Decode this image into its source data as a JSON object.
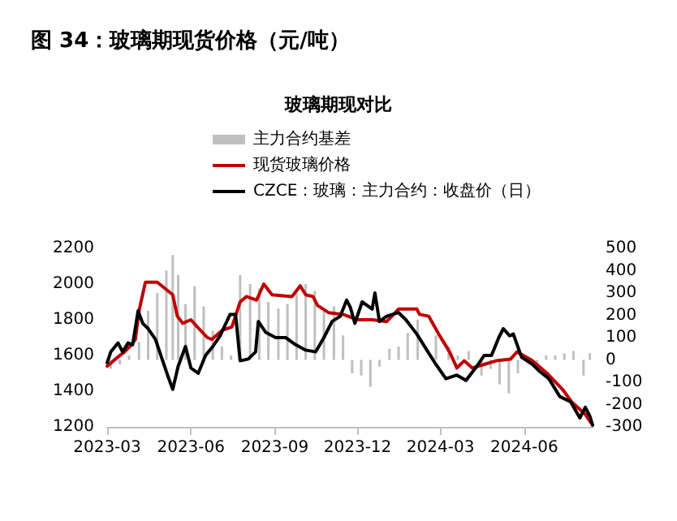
{
  "chart_data": {
    "type": "line",
    "title": "图 34：玻璃期现货价格（元/吨）",
    "subtitle": "玻璃期现对比",
    "legend": "top left",
    "grid": false,
    "marker": "none",
    "line_style": "solid",
    "xlim": [
      "2023-03-01",
      "2024-08-15"
    ],
    "xticks": [
      "2023-03",
      "2023-06",
      "2023-09",
      "2023-12",
      "2024-03",
      "2024-06"
    ],
    "ylim": [
      1200,
      2200
    ],
    "yticks": [
      1200,
      1400,
      1600,
      1800,
      2000,
      2200
    ],
    "y2lim": [
      -300,
      500
    ],
    "y2ticks": [
      -300,
      -200,
      -100,
      0,
      100,
      200,
      300,
      400,
      500
    ],
    "series": [
      {
        "name": "主力合约基差",
        "type": "bar",
        "axis": "y2",
        "color": "#bfbfbf",
        "x": [
          "2023-03-05",
          "2023-03-15",
          "2023-03-25",
          "2023-04-05",
          "2023-04-15",
          "2023-04-25",
          "2023-05-05",
          "2023-05-12",
          "2023-05-18",
          "2023-05-26",
          "2023-06-05",
          "2023-06-15",
          "2023-06-25",
          "2023-07-05",
          "2023-07-15",
          "2023-07-25",
          "2023-08-05",
          "2023-08-15",
          "2023-08-25",
          "2023-09-05",
          "2023-09-15",
          "2023-09-25",
          "2023-10-05",
          "2023-10-15",
          "2023-10-25",
          "2023-11-05",
          "2023-11-15",
          "2023-11-25",
          "2023-12-05",
          "2023-12-15",
          "2023-12-25",
          "2024-01-05",
          "2024-01-15",
          "2024-01-25",
          "2024-02-05",
          "2024-02-25",
          "2024-03-10",
          "2024-03-20",
          "2024-04-01",
          "2024-04-15",
          "2024-04-25",
          "2024-05-05",
          "2024-05-15",
          "2024-05-25",
          "2024-06-05",
          "2024-06-15",
          "2024-06-25",
          "2024-07-05",
          "2024-07-15",
          "2024-07-25",
          "2024-08-05",
          "2024-08-12"
        ],
        "values": [
          -40,
          -20,
          20,
          80,
          220,
          300,
          400,
          470,
          380,
          250,
          330,
          240,
          130,
          60,
          20,
          380,
          340,
          320,
          260,
          230,
          250,
          300,
          340,
          310,
          220,
          240,
          110,
          -60,
          -70,
          -120,
          -30,
          50,
          60,
          120,
          180,
          110,
          60,
          20,
          40,
          -70,
          -40,
          -110,
          -150,
          -60,
          10,
          -20,
          20,
          20,
          30,
          40,
          -70,
          30
        ]
      },
      {
        "name": "现货玻璃价格",
        "color": "#c00000",
        "x": [
          "2023-03-01",
          "2023-03-10",
          "2023-03-20",
          "2023-03-26",
          "2023-04-01",
          "2023-04-05",
          "2023-04-12",
          "2023-04-25",
          "2023-04-30",
          "2023-05-12",
          "2023-05-17",
          "2023-05-23",
          "2023-06-01",
          "2023-06-08",
          "2023-06-19",
          "2023-06-24",
          "2023-07-05",
          "2023-07-16",
          "2023-07-25",
          "2023-08-01",
          "2023-08-12",
          "2023-08-20",
          "2023-08-29",
          "2023-09-20",
          "2023-09-29",
          "2023-10-05",
          "2023-10-13",
          "2023-10-18",
          "2023-10-30",
          "2023-11-15",
          "2023-12-01",
          "2023-12-17",
          "2024-01-02",
          "2024-01-15",
          "2024-02-04",
          "2024-02-07",
          "2024-02-17",
          "2024-02-28",
          "2024-03-11",
          "2024-03-19",
          "2024-03-27",
          "2024-04-05",
          "2024-04-18",
          "2024-05-01",
          "2024-05-17",
          "2024-05-24",
          "2024-06-10",
          "2024-06-26",
          "2024-07-13",
          "2024-07-23",
          "2024-08-07",
          "2024-08-15"
        ],
        "values": [
          1540,
          1580,
          1620,
          1650,
          1690,
          1850,
          2010,
          2010,
          1990,
          1940,
          1820,
          1780,
          1800,
          1760,
          1700,
          1690,
          1740,
          1760,
          1900,
          1930,
          1910,
          2000,
          1940,
          1930,
          1990,
          1940,
          1930,
          1880,
          1840,
          1830,
          1800,
          1800,
          1790,
          1860,
          1860,
          1830,
          1820,
          1720,
          1620,
          1530,
          1570,
          1530,
          1550,
          1570,
          1580,
          1620,
          1570,
          1500,
          1410,
          1340,
          1270,
          1210
        ]
      },
      {
        "name": "CZCE：玻璃：主力合约：收盘价（日）",
        "color": "#000000",
        "x": [
          "2023-03-01",
          "2023-03-05",
          "2023-03-13",
          "2023-03-18",
          "2023-03-24",
          "2023-03-29",
          "2023-04-04",
          "2023-04-09",
          "2023-04-15",
          "2023-04-23",
          "2023-05-01",
          "2023-05-07",
          "2023-05-12",
          "2023-05-18",
          "2023-05-26",
          "2023-06-01",
          "2023-06-09",
          "2023-06-17",
          "2023-06-25",
          "2023-07-03",
          "2023-07-14",
          "2023-07-20",
          "2023-07-25",
          "2023-08-03",
          "2023-08-11",
          "2023-08-14",
          "2023-08-22",
          "2023-09-02",
          "2023-09-13",
          "2023-09-24",
          "2023-10-05",
          "2023-10-16",
          "2023-10-25",
          "2023-11-03",
          "2023-11-12",
          "2023-11-19",
          "2023-11-23",
          "2023-11-28",
          "2023-12-06",
          "2023-12-17",
          "2023-12-20",
          "2023-12-25",
          "2024-01-02",
          "2024-01-15",
          "2024-01-23",
          "2024-02-04",
          "2024-02-15",
          "2024-02-25",
          "2024-03-07",
          "2024-03-19",
          "2024-03-29",
          "2024-04-10",
          "2024-04-18",
          "2024-04-26",
          "2024-05-04",
          "2024-05-09",
          "2024-05-16",
          "2024-05-20",
          "2024-05-29",
          "2024-06-10",
          "2024-06-18",
          "2024-06-28",
          "2024-07-10",
          "2024-07-22",
          "2024-08-01",
          "2024-08-07",
          "2024-08-12",
          "2024-08-15"
        ],
        "values": [
          1560,
          1620,
          1670,
          1620,
          1670,
          1660,
          1850,
          1780,
          1750,
          1690,
          1570,
          1480,
          1410,
          1540,
          1650,
          1530,
          1500,
          1600,
          1650,
          1710,
          1830,
          1830,
          1570,
          1580,
          1620,
          1790,
          1730,
          1700,
          1700,
          1660,
          1630,
          1620,
          1700,
          1790,
          1820,
          1910,
          1870,
          1780,
          1900,
          1860,
          1950,
          1790,
          1820,
          1840,
          1800,
          1720,
          1630,
          1550,
          1470,
          1490,
          1460,
          1540,
          1600,
          1600,
          1700,
          1750,
          1710,
          1720,
          1590,
          1550,
          1510,
          1470,
          1370,
          1340,
          1250,
          1310,
          1260,
          1210
        ]
      }
    ]
  }
}
